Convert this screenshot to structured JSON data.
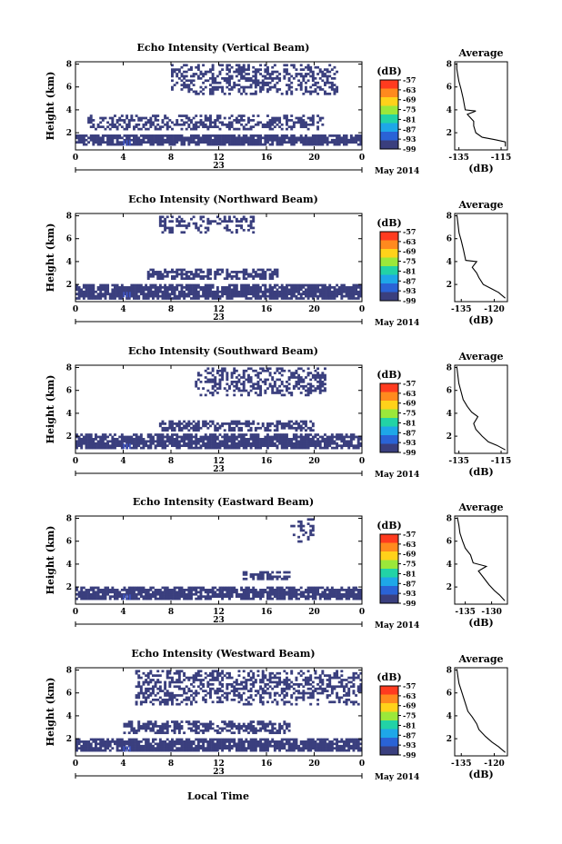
{
  "figure": {
    "xlabel_bottom": "Local Time",
    "background": "#ffffff",
    "echo_color": "#3a3f7e",
    "strong_color": "#3d55c8"
  },
  "chart_data": [
    {
      "type": "heatmap",
      "title": "Echo Intensity (Vertical Beam)",
      "beam": "vertical",
      "ylabel": "Height (km)",
      "xlabel": "",
      "x_ticks": [
        "0",
        "4",
        "8",
        "12",
        "16",
        "20",
        "0"
      ],
      "x_range": [
        0,
        24
      ],
      "y_ticks": [
        "2",
        "4",
        "6",
        "8"
      ],
      "y_range": [
        0.5,
        8.2
      ],
      "date_label": "23",
      "month_label": "May 2014",
      "colorbar": {
        "unit": "(dB)",
        "ticks": [
          "-57",
          "-63",
          "-69",
          "-75",
          "-81",
          "-87",
          "-93",
          "-99"
        ],
        "colors": [
          "#ff3b1f",
          "#ff8a1e",
          "#ffd21a",
          "#9be83a",
          "#22d3a6",
          "#1ea7e8",
          "#2a63d6",
          "#3a3f7e"
        ]
      },
      "echo_layers": [
        {
          "h_min": 0.9,
          "h_max": 1.9,
          "t_start": 0,
          "t_end": 24,
          "density": 0.92
        },
        {
          "h_min": 2.2,
          "h_max": 3.5,
          "t_start": 1,
          "t_end": 21,
          "density": 0.55
        },
        {
          "h_min": 5.3,
          "h_max": 8.1,
          "t_start": 8,
          "t_end": 22,
          "density": 0.45
        }
      ],
      "average_profile": {
        "title": "Average",
        "xlabel": "(dB)",
        "x_ticks": [
          "-135",
          "-115"
        ],
        "x_range": [
          -137,
          -112
        ],
        "y_ticks": [
          "2",
          "4",
          "6",
          "8"
        ],
        "y_range": [
          0.5,
          8.2
        ],
        "x": [
          -113,
          -113,
          -118,
          -124,
          -127,
          -128,
          -128,
          -131,
          -127,
          -132,
          -133,
          -134,
          -135,
          -135.5,
          -136,
          -136
        ],
        "y": [
          0.8,
          1.2,
          1.4,
          1.6,
          2.0,
          2.6,
          3.0,
          3.6,
          3.9,
          4.0,
          5.0,
          5.8,
          6.5,
          7.0,
          7.6,
          8.1
        ]
      }
    },
    {
      "type": "heatmap",
      "title": "Echo Intensity (Northward Beam)",
      "beam": "northward",
      "ylabel": "Height (km)",
      "xlabel": "",
      "x_ticks": [
        "0",
        "4",
        "8",
        "12",
        "16",
        "20",
        "0"
      ],
      "x_range": [
        0,
        24
      ],
      "y_ticks": [
        "2",
        "4",
        "6",
        "8"
      ],
      "y_range": [
        0.5,
        8.2
      ],
      "date_label": "23",
      "month_label": "May 2014",
      "colorbar": {
        "unit": "(dB)",
        "ticks": [
          "-57",
          "-63",
          "-69",
          "-75",
          "-81",
          "-87",
          "-93",
          "-99"
        ],
        "colors": [
          "#ff3b1f",
          "#ff8a1e",
          "#ffd21a",
          "#9be83a",
          "#22d3a6",
          "#1ea7e8",
          "#2a63d6",
          "#3a3f7e"
        ]
      },
      "echo_layers": [
        {
          "h_min": 0.7,
          "h_max": 2.1,
          "t_start": 0,
          "t_end": 24,
          "density": 0.9
        },
        {
          "h_min": 2.4,
          "h_max": 3.4,
          "t_start": 6,
          "t_end": 17,
          "density": 0.7
        },
        {
          "h_min": 6.5,
          "h_max": 8.1,
          "t_start": 7,
          "t_end": 15,
          "density": 0.4
        }
      ],
      "average_profile": {
        "title": "Average",
        "xlabel": "(dB)",
        "x_ticks": [
          "-135",
          "-120"
        ],
        "x_range": [
          -138,
          -114
        ],
        "y_ticks": [
          "2",
          "4",
          "6",
          "8"
        ],
        "y_range": [
          0.5,
          8.2
        ],
        "x": [
          -115,
          -118,
          -121,
          -125,
          -127,
          -128,
          -130,
          -128,
          -133,
          -134,
          -135,
          -136,
          -136.5,
          -137
        ],
        "y": [
          0.8,
          1.3,
          1.6,
          2.0,
          2.6,
          3.0,
          3.5,
          4.0,
          4.1,
          5.0,
          5.8,
          6.5,
          7.3,
          8.1
        ]
      }
    },
    {
      "type": "heatmap",
      "title": "Echo Intensity (Southward Beam)",
      "beam": "southward",
      "ylabel": "Height (km)",
      "xlabel": "",
      "x_ticks": [
        "0",
        "4",
        "8",
        "12",
        "16",
        "20",
        "0"
      ],
      "x_range": [
        0,
        24
      ],
      "y_ticks": [
        "2",
        "4",
        "6",
        "8"
      ],
      "y_range": [
        0.5,
        8.2
      ],
      "date_label": "23",
      "month_label": "May 2014",
      "colorbar": {
        "unit": "(dB)",
        "ticks": [
          "-57",
          "-63",
          "-69",
          "-75",
          "-81",
          "-87",
          "-93",
          "-99"
        ],
        "colors": [
          "#ff3b1f",
          "#ff8a1e",
          "#ffd21a",
          "#9be83a",
          "#22d3a6",
          "#1ea7e8",
          "#2a63d6",
          "#3a3f7e"
        ]
      },
      "echo_layers": [
        {
          "h_min": 0.8,
          "h_max": 2.2,
          "t_start": 0,
          "t_end": 24,
          "density": 0.88
        },
        {
          "h_min": 2.4,
          "h_max": 3.4,
          "t_start": 7,
          "t_end": 20,
          "density": 0.6
        },
        {
          "h_min": 5.5,
          "h_max": 8.1,
          "t_start": 10,
          "t_end": 21,
          "density": 0.45
        }
      ],
      "average_profile": {
        "title": "Average",
        "xlabel": "(dB)",
        "x_ticks": [
          "-135",
          "-115"
        ],
        "x_range": [
          -137,
          -112
        ],
        "y_ticks": [
          "2",
          "4",
          "6",
          "8"
        ],
        "y_range": [
          0.5,
          8.2
        ],
        "x": [
          -113,
          -117,
          -121,
          -124,
          -127,
          -128,
          -126,
          -129,
          -131,
          -133,
          -134,
          -135,
          -135.5,
          -136
        ],
        "y": [
          0.8,
          1.2,
          1.5,
          2.0,
          2.6,
          3.1,
          3.7,
          4.1,
          4.6,
          5.2,
          5.9,
          6.6,
          7.3,
          8.1
        ]
      }
    },
    {
      "type": "heatmap",
      "title": "Echo Intensity (Eastward Beam)",
      "beam": "eastward",
      "ylabel": "Height (km)",
      "xlabel": "",
      "x_ticks": [
        "0",
        "4",
        "8",
        "12",
        "16",
        "20",
        "0"
      ],
      "x_range": [
        0,
        24
      ],
      "y_ticks": [
        "2",
        "4",
        "6",
        "8"
      ],
      "y_range": [
        0.5,
        8.2
      ],
      "date_label": "23",
      "month_label": "May 2014",
      "colorbar": {
        "unit": "(dB)",
        "ticks": [
          "-57",
          "-63",
          "-69",
          "-75",
          "-81",
          "-87",
          "-93",
          "-99"
        ],
        "colors": [
          "#ff3b1f",
          "#ff8a1e",
          "#ffd21a",
          "#9be83a",
          "#22d3a6",
          "#1ea7e8",
          "#2a63d6",
          "#3a3f7e"
        ]
      },
      "echo_layers": [
        {
          "h_min": 0.8,
          "h_max": 2.0,
          "t_start": 0,
          "t_end": 24,
          "density": 0.85
        },
        {
          "h_min": 2.6,
          "h_max": 3.4,
          "t_start": 14,
          "t_end": 18,
          "density": 0.55
        },
        {
          "h_min": 5.8,
          "h_max": 8.1,
          "t_start": 18,
          "t_end": 20,
          "density": 0.35
        }
      ],
      "average_profile": {
        "title": "Average",
        "xlabel": "(dB)",
        "x_ticks": [
          "-135",
          "-130"
        ],
        "x_range": [
          -137,
          -127
        ],
        "y_ticks": [
          "2",
          "4",
          "6",
          "8"
        ],
        "y_range": [
          0.5,
          8.2
        ],
        "x": [
          -127.5,
          -128.5,
          -129.5,
          -130.5,
          -131.5,
          -132.5,
          -131,
          -133.5,
          -134,
          -135,
          -135.5,
          -136,
          -136.2,
          -136.5
        ],
        "y": [
          0.8,
          1.3,
          1.7,
          2.2,
          2.8,
          3.4,
          3.8,
          4.1,
          4.8,
          5.4,
          6.0,
          6.7,
          7.4,
          8.1
        ]
      }
    },
    {
      "type": "heatmap",
      "title": "Echo Intensity (Westward Beam)",
      "beam": "westward",
      "ylabel": "Height (km)",
      "xlabel": "",
      "x_ticks": [
        "0",
        "4",
        "8",
        "12",
        "16",
        "20",
        "0"
      ],
      "x_range": [
        0,
        24
      ],
      "y_ticks": [
        "2",
        "4",
        "6",
        "8"
      ],
      "y_range": [
        0.5,
        8.2
      ],
      "date_label": "23",
      "month_label": "May 2014",
      "colorbar": {
        "unit": "(dB)",
        "ticks": [
          "-57",
          "-63",
          "-69",
          "-75",
          "-81",
          "-87",
          "-93",
          "-99"
        ],
        "colors": [
          "#ff3b1f",
          "#ff8a1e",
          "#ffd21a",
          "#9be83a",
          "#22d3a6",
          "#1ea7e8",
          "#2a63d6",
          "#3a3f7e"
        ]
      },
      "echo_layers": [
        {
          "h_min": 0.8,
          "h_max": 2.1,
          "t_start": 0,
          "t_end": 24,
          "density": 0.9
        },
        {
          "h_min": 2.5,
          "h_max": 3.5,
          "t_start": 4,
          "t_end": 18,
          "density": 0.6
        },
        {
          "h_min": 5.0,
          "h_max": 8.1,
          "t_start": 5,
          "t_end": 24,
          "density": 0.5
        }
      ],
      "average_profile": {
        "title": "Average",
        "xlabel": "(dB)",
        "x_ticks": [
          "-135",
          "-120"
        ],
        "x_range": [
          -138,
          -114
        ],
        "y_ticks": [
          "2",
          "4",
          "6",
          "8"
        ],
        "y_range": [
          0.5,
          8.2
        ],
        "x": [
          -115,
          -118,
          -121,
          -124,
          -127,
          -128,
          -130,
          -132,
          -133,
          -134,
          -135,
          -136,
          -136.5,
          -137
        ],
        "y": [
          0.8,
          1.3,
          1.7,
          2.2,
          2.8,
          3.3,
          3.9,
          4.4,
          5.0,
          5.6,
          6.2,
          6.8,
          7.4,
          8.1
        ]
      }
    }
  ]
}
